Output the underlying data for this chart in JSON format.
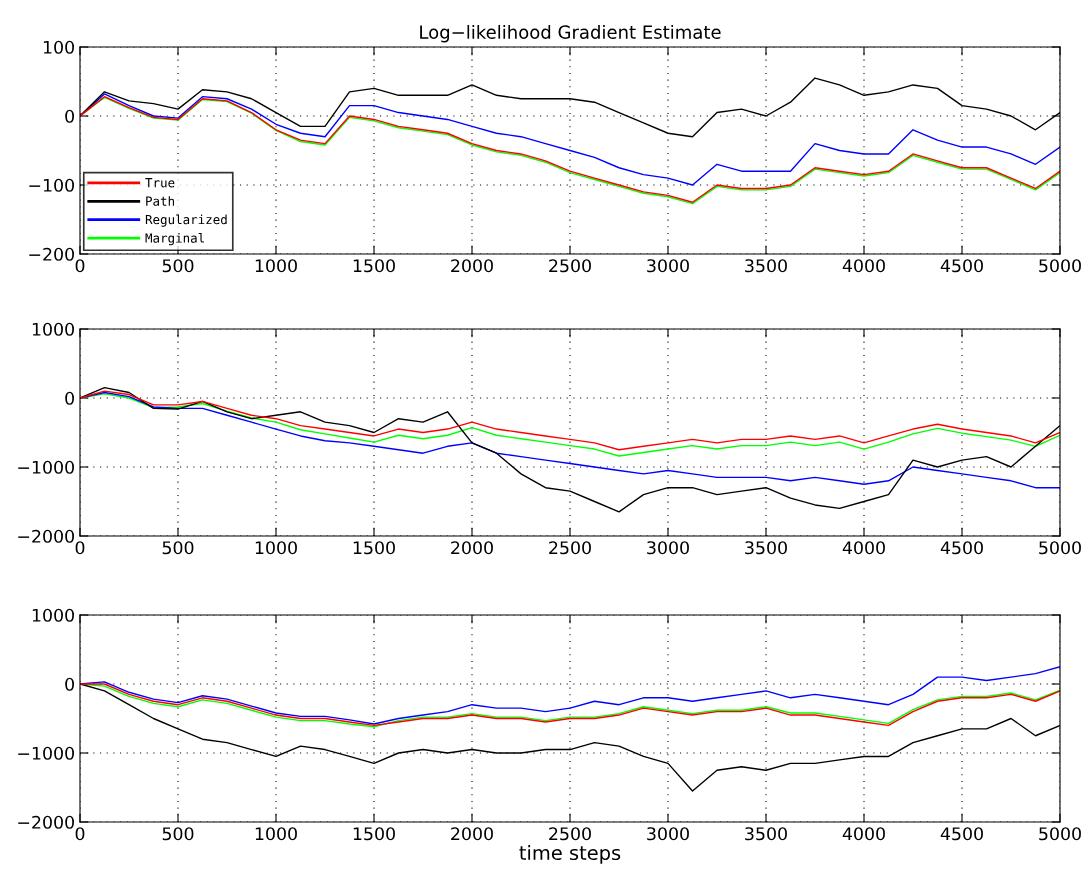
{
  "chart_data": [
    {
      "type": "line",
      "title": "Log−likelihood Gradient Estimate",
      "x": [
        0,
        125,
        250,
        375,
        500,
        625,
        750,
        875,
        1000,
        1125,
        1250,
        1375,
        1500,
        1625,
        1750,
        1875,
        2000,
        2125,
        2250,
        2375,
        2500,
        2625,
        2750,
        2875,
        3000,
        3125,
        3250,
        3375,
        3500,
        3625,
        3750,
        3875,
        4000,
        4125,
        4250,
        4375,
        4500,
        4625,
        4750,
        4875,
        5000
      ],
      "xlim": [
        0,
        5000
      ],
      "xticks": [
        0,
        500,
        1000,
        1500,
        2000,
        2500,
        3000,
        3500,
        4000,
        4500,
        5000
      ],
      "ylim": [
        -200,
        100
      ],
      "yticks": [
        -200,
        -100,
        0,
        100
      ],
      "grid": true,
      "legend": "bottom left",
      "marker": "none",
      "line_style": "solid",
      "series": [
        {
          "name": "True",
          "color": "#ff0000",
          "values": [
            0,
            28,
            12,
            -2,
            -5,
            25,
            22,
            5,
            -20,
            -35,
            -40,
            0,
            -5,
            -15,
            -20,
            -25,
            -40,
            -50,
            -55,
            -65,
            -80,
            -90,
            -100,
            -110,
            -115,
            -125,
            -100,
            -105,
            -105,
            -100,
            -75,
            -80,
            -85,
            -80,
            -55,
            -65,
            -75,
            -75,
            -90,
            -105,
            -80
          ]
        },
        {
          "name": "Path",
          "color": "#000000",
          "values": [
            0,
            35,
            22,
            18,
            10,
            38,
            35,
            25,
            5,
            -15,
            -15,
            35,
            40,
            30,
            30,
            30,
            45,
            30,
            25,
            25,
            25,
            20,
            5,
            -10,
            -25,
            -30,
            5,
            10,
            0,
            20,
            55,
            45,
            30,
            35,
            45,
            40,
            15,
            10,
            0,
            -20,
            5
          ]
        },
        {
          "name": "Regularized",
          "color": "#0000ff",
          "values": [
            0,
            32,
            15,
            0,
            -3,
            28,
            25,
            10,
            -12,
            -25,
            -30,
            15,
            15,
            5,
            0,
            -5,
            -15,
            -25,
            -30,
            -40,
            -50,
            -60,
            -75,
            -85,
            -90,
            -100,
            -70,
            -80,
            -80,
            -80,
            -40,
            -50,
            -55,
            -55,
            -20,
            -35,
            -45,
            -45,
            -55,
            -70,
            -45
          ]
        },
        {
          "name": "Marginal",
          "color": "#00ff00",
          "values": [
            0,
            27,
            11,
            -3,
            -6,
            24,
            21,
            4,
            -21,
            -37,
            -42,
            -2,
            -7,
            -17,
            -22,
            -27,
            -42,
            -52,
            -57,
            -67,
            -82,
            -92,
            -102,
            -112,
            -117,
            -127,
            -102,
            -107,
            -107,
            -102,
            -77,
            -82,
            -87,
            -82,
            -57,
            -67,
            -77,
            -77,
            -92,
            -107,
            -82
          ]
        }
      ]
    },
    {
      "type": "line",
      "x": [
        0,
        125,
        250,
        375,
        500,
        625,
        750,
        875,
        1000,
        1125,
        1250,
        1375,
        1500,
        1625,
        1750,
        1875,
        2000,
        2125,
        2250,
        2375,
        2500,
        2625,
        2750,
        2875,
        3000,
        3125,
        3250,
        3375,
        3500,
        3625,
        3750,
        3875,
        4000,
        4125,
        4250,
        4375,
        4500,
        4625,
        4750,
        4875,
        5000
      ],
      "xlim": [
        0,
        5000
      ],
      "xticks": [
        0,
        500,
        1000,
        1500,
        2000,
        2500,
        3000,
        3500,
        4000,
        4500,
        5000
      ],
      "ylim": [
        -2000,
        1000
      ],
      "yticks": [
        -2000,
        -1000,
        0,
        1000
      ],
      "grid": true,
      "marker": "none",
      "line_style": "solid",
      "series": [
        {
          "color": "#ff0000",
          "values": [
            0,
            100,
            50,
            -100,
            -100,
            -50,
            -150,
            -250,
            -300,
            -400,
            -450,
            -500,
            -550,
            -450,
            -500,
            -450,
            -350,
            -450,
            -500,
            -550,
            -600,
            -650,
            -750,
            -700,
            -650,
            -600,
            -650,
            -600,
            -600,
            -550,
            -600,
            -550,
            -650,
            -550,
            -450,
            -380,
            -450,
            -500,
            -550,
            -650,
            -500
          ]
        },
        {
          "color": "#000000",
          "values": [
            0,
            150,
            80,
            -150,
            -160,
            -50,
            -200,
            -300,
            -250,
            -200,
            -350,
            -400,
            -500,
            -300,
            -350,
            -200,
            -650,
            -800,
            -1100,
            -1300,
            -1350,
            -1500,
            -1650,
            -1400,
            -1300,
            -1300,
            -1400,
            -1350,
            -1300,
            -1450,
            -1550,
            -1600,
            -1500,
            -1400,
            -900,
            -1000,
            -900,
            -850,
            -1000,
            -700,
            -400
          ]
        },
        {
          "color": "#0000ff",
          "values": [
            0,
            80,
            20,
            -130,
            -150,
            -150,
            -250,
            -350,
            -450,
            -550,
            -620,
            -650,
            -700,
            -750,
            -800,
            -700,
            -650,
            -800,
            -850,
            -900,
            -950,
            -1000,
            -1050,
            -1100,
            -1050,
            -1100,
            -1150,
            -1150,
            -1150,
            -1200,
            -1150,
            -1200,
            -1250,
            -1200,
            -1000,
            -1050,
            -1100,
            -1150,
            -1200,
            -1300,
            -1300
          ]
        },
        {
          "color": "#00ff00",
          "values": [
            0,
            60,
            0,
            -140,
            -130,
            -80,
            -190,
            -290,
            -350,
            -460,
            -520,
            -580,
            -640,
            -540,
            -590,
            -540,
            -430,
            -540,
            -590,
            -640,
            -690,
            -740,
            -840,
            -790,
            -740,
            -690,
            -740,
            -690,
            -690,
            -640,
            -690,
            -640,
            -740,
            -640,
            -520,
            -440,
            -510,
            -560,
            -610,
            -700,
            -540
          ]
        }
      ]
    },
    {
      "type": "line",
      "xlabel": "time steps",
      "x": [
        0,
        125,
        250,
        375,
        500,
        625,
        750,
        875,
        1000,
        1125,
        1250,
        1375,
        1500,
        1625,
        1750,
        1875,
        2000,
        2125,
        2250,
        2375,
        2500,
        2625,
        2750,
        2875,
        3000,
        3125,
        3250,
        3375,
        3500,
        3625,
        3750,
        3875,
        4000,
        4125,
        4250,
        4375,
        4500,
        4625,
        4750,
        4875,
        5000
      ],
      "xlim": [
        0,
        5000
      ],
      "xticks": [
        0,
        500,
        1000,
        1500,
        2000,
        2500,
        3000,
        3500,
        4000,
        4500,
        5000
      ],
      "ylim": [
        -2000,
        1000
      ],
      "yticks": [
        -2000,
        -1000,
        0,
        1000
      ],
      "grid": true,
      "marker": "none",
      "line_style": "solid",
      "series": [
        {
          "color": "#ff0000",
          "values": [
            0,
            0,
            -150,
            -250,
            -300,
            -200,
            -250,
            -350,
            -450,
            -500,
            -500,
            -550,
            -600,
            -550,
            -500,
            -500,
            -450,
            -500,
            -500,
            -550,
            -500,
            -500,
            -450,
            -350,
            -400,
            -450,
            -400,
            -400,
            -350,
            -450,
            -450,
            -500,
            -550,
            -600,
            -400,
            -250,
            -200,
            -200,
            -150,
            -250,
            -100
          ]
        },
        {
          "color": "#000000",
          "values": [
            0,
            -100,
            -300,
            -500,
            -650,
            -800,
            -850,
            -950,
            -1050,
            -900,
            -950,
            -1050,
            -1150,
            -1000,
            -950,
            -1000,
            -950,
            -1000,
            -1000,
            -950,
            -950,
            -850,
            -900,
            -1050,
            -1150,
            -1550,
            -1250,
            -1200,
            -1250,
            -1150,
            -1150,
            -1100,
            -1050,
            -1050,
            -850,
            -750,
            -650,
            -650,
            -500,
            -750,
            -600
          ]
        },
        {
          "color": "#0000ff",
          "values": [
            0,
            30,
            -120,
            -220,
            -270,
            -170,
            -220,
            -320,
            -420,
            -470,
            -470,
            -520,
            -580,
            -500,
            -450,
            -400,
            -300,
            -350,
            -350,
            -400,
            -350,
            -250,
            -300,
            -200,
            -200,
            -250,
            -200,
            -150,
            -100,
            -200,
            -150,
            -200,
            -250,
            -300,
            -150,
            100,
            100,
            50,
            100,
            150,
            250
          ]
        },
        {
          "color": "#00ff00",
          "values": [
            0,
            -30,
            -180,
            -280,
            -330,
            -230,
            -280,
            -380,
            -480,
            -530,
            -530,
            -580,
            -620,
            -530,
            -480,
            -480,
            -430,
            -480,
            -480,
            -530,
            -480,
            -480,
            -430,
            -330,
            -380,
            -430,
            -380,
            -380,
            -330,
            -420,
            -420,
            -470,
            -520,
            -570,
            -370,
            -230,
            -180,
            -180,
            -130,
            -230,
            -90
          ]
        }
      ]
    }
  ]
}
